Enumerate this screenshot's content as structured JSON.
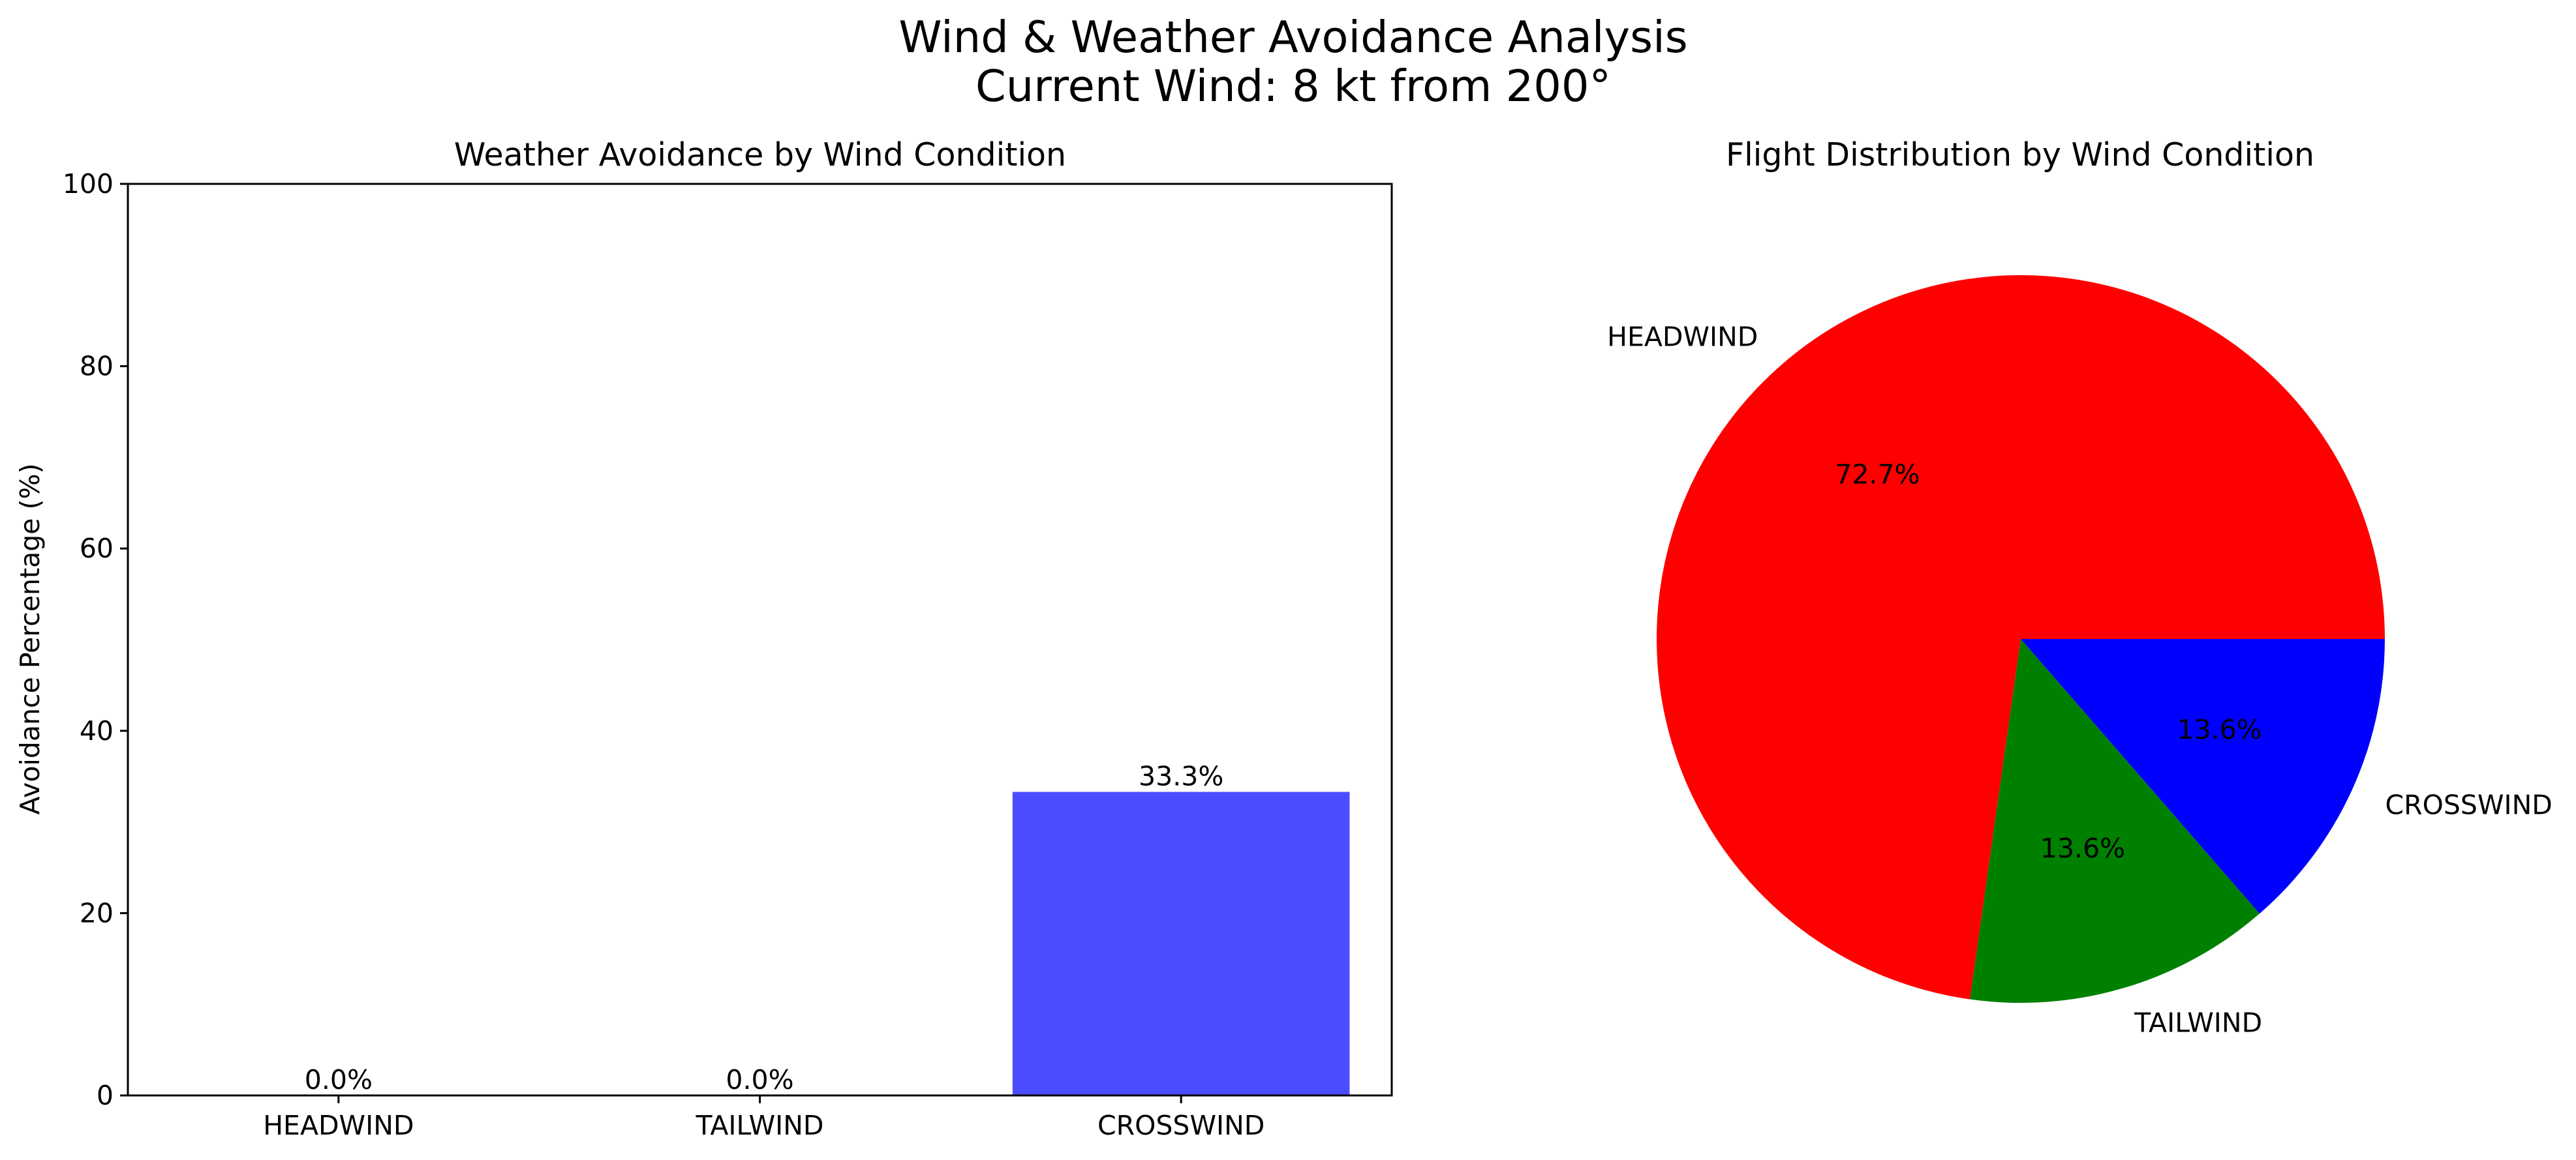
{
  "title_line1": "Wind & Weather Avoidance Analysis",
  "title_line2": "Current Wind: 8 kt from 200°",
  "chart_data": [
    {
      "type": "bar",
      "title": "Weather Avoidance by Wind Condition",
      "xlabel": "",
      "ylabel": "Avoidance Percentage (%)",
      "categories": [
        "HEADWIND",
        "TAILWIND",
        "CROSSWIND"
      ],
      "values": [
        0.0,
        0.0,
        33.3
      ],
      "data_labels": [
        "0.0%",
        "0.0%",
        "33.3%"
      ],
      "ylim": [
        0,
        100
      ],
      "yticks": [
        0,
        20,
        40,
        60,
        80,
        100
      ],
      "ytick_labels": [
        "0",
        "20",
        "40",
        "60",
        "80",
        "100"
      ],
      "bar_color": "#4c4cff",
      "grid": false,
      "legend": "none"
    },
    {
      "type": "pie",
      "title": "Flight Distribution by Wind Condition",
      "labels": [
        "HEADWIND",
        "TAILWIND",
        "CROSSWIND"
      ],
      "values": [
        72.7,
        13.6,
        13.6
      ],
      "pct_labels": [
        "72.7%",
        "13.6%",
        "13.6%"
      ],
      "colors": [
        "#ff0000",
        "#008000",
        "#0000ff"
      ],
      "start_angle": 0,
      "direction": "counterclockwise",
      "legend": "none"
    }
  ]
}
